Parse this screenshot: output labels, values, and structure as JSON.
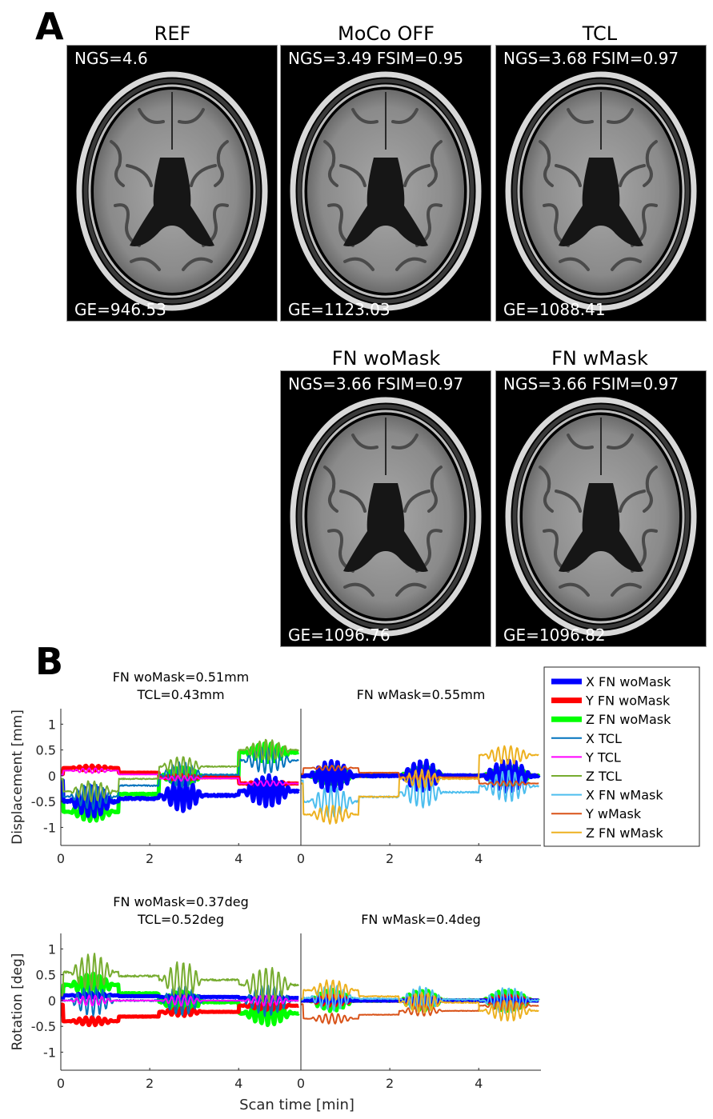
{
  "panel_a": {
    "letter": "A",
    "images": [
      {
        "title": "REF",
        "top_metrics": "NGS=4.6",
        "ge": "GE=946.53"
      },
      {
        "title": "MoCo OFF",
        "top_metrics": "NGS=3.49 FSIM=0.95",
        "ge": "GE=1123.03"
      },
      {
        "title": "TCL",
        "top_metrics": "NGS=3.68 FSIM=0.97",
        "ge": "GE=1088.41"
      },
      {
        "title": "FN woMask",
        "top_metrics": "NGS=3.66 FSIM=0.97",
        "ge": "GE=1096.76"
      },
      {
        "title": "FN wMask",
        "top_metrics": "NGS=3.66 FSIM=0.97",
        "ge": "GE=1096.82"
      }
    ]
  },
  "panel_b": {
    "letter": "B",
    "legend": [
      {
        "label": "X FN woMask",
        "color": "#0000ff",
        "width": 5
      },
      {
        "label": "Y FN woMask",
        "color": "#ff0000",
        "width": 5
      },
      {
        "label": "Z FN woMask",
        "color": "#00ff00",
        "width": 5
      },
      {
        "label": "X TCL",
        "color": "#0072bd",
        "width": 2
      },
      {
        "label": "Y TCL",
        "color": "#ff00ff",
        "width": 2
      },
      {
        "label": "Z TCL",
        "color": "#77ac30",
        "width": 2
      },
      {
        "label": "X FN wMask",
        "color": "#4dbeee",
        "width": 2
      },
      {
        "label": "Y wMask",
        "color": "#d95319",
        "width": 2
      },
      {
        "label": "Z FN wMask",
        "color": "#edb120",
        "width": 2
      }
    ]
  },
  "chart_data": [
    {
      "type": "line",
      "title": "FN woMask=0.51mm\nTCL=0.43mm",
      "ylabel": "Displacement [mm]",
      "xlabel": "",
      "xlim": [
        0,
        5.4
      ],
      "ylim": [
        -1.35,
        1.3
      ],
      "xticks": [
        0,
        2,
        4
      ],
      "yticks": [
        1,
        0.5,
        0,
        -0.5,
        -1
      ],
      "grid": false,
      "approx_levels": {
        "X FN woMask": [
          -0.5,
          -0.3
        ],
        "Y FN woMask": [
          0.15,
          -0.15
        ],
        "Z FN woMask": [
          -0.7,
          0.45
        ],
        "X TCL": [
          -0.4,
          0.3
        ],
        "Y TCL": [
          0.1,
          -0.15
        ],
        "Z TCL": [
          -0.3,
          0.5
        ]
      }
    },
    {
      "type": "line",
      "title": "FN wMask=0.55mm",
      "xlim": [
        0,
        5.4
      ],
      "ylim": [
        -1.35,
        1.3
      ],
      "xticks": [
        0,
        2,
        4
      ],
      "grid": false,
      "approx_levels": {
        "X FN wMask": [
          -0.5,
          -0.2
        ],
        "Y wMask": [
          0.15,
          -0.15
        ],
        "Z FN wMask": [
          -0.75,
          0.4
        ]
      }
    },
    {
      "type": "line",
      "title": "FN woMask=0.37deg\nTCL=0.52deg",
      "ylabel": "Rotation [deg]",
      "xlim": [
        0,
        5.4
      ],
      "ylim": [
        -1.35,
        1.3
      ],
      "xticks": [
        0,
        2,
        4
      ],
      "yticks": [
        1,
        0.5,
        0,
        -0.5,
        -1
      ],
      "grid": false,
      "approx_levels": {
        "X FN woMask": [
          0.1,
          0.05
        ],
        "Y FN woMask": [
          -0.4,
          -0.1
        ],
        "Z FN woMask": [
          0.3,
          -0.25
        ],
        "Z TCL": [
          0.55,
          0.3
        ]
      }
    },
    {
      "type": "line",
      "title": "FN wMask=0.4deg",
      "xlabel": "Scan time [min]",
      "xlim": [
        0,
        5.4
      ],
      "ylim": [
        -1.35,
        1.3
      ],
      "xticks": [
        0,
        2,
        4
      ],
      "grid": false,
      "approx_levels": {
        "X FN wMask": [
          0.05,
          0.0
        ],
        "Y wMask": [
          -0.35,
          -0.1
        ],
        "Z FN wMask": [
          0.2,
          -0.2
        ]
      }
    }
  ]
}
